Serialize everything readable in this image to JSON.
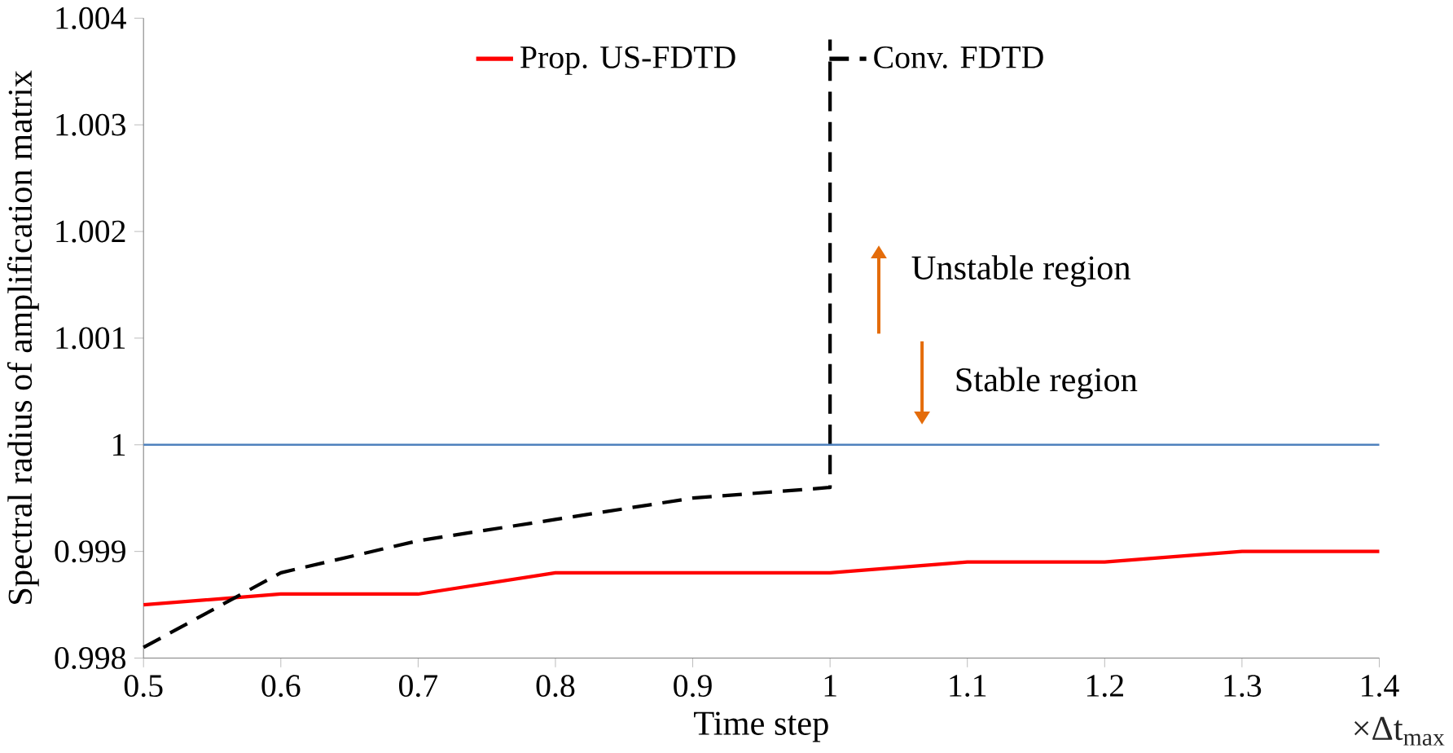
{
  "chart_data": {
    "type": "line",
    "xlabel": "Time step",
    "ylabel": "Spectral radius of amplification matrix",
    "xlim": [
      0.5,
      1.4
    ],
    "ylim": [
      0.998,
      1.004
    ],
    "xticks": [
      0.5,
      0.6,
      0.7,
      0.8,
      0.9,
      1,
      1.1,
      1.2,
      1.3,
      1.4
    ],
    "yticks": [
      0.998,
      0.999,
      1,
      1.001,
      1.002,
      1.003,
      1.004
    ],
    "legend": "top",
    "series": [
      {
        "name": "Prop. US-FDTD",
        "color": "#ff0000",
        "line_style": "solid",
        "x": [
          0.5,
          0.6,
          0.7,
          0.8,
          0.9,
          1.0,
          1.1,
          1.2,
          1.3,
          1.4
        ],
        "values": [
          0.9985,
          0.9986,
          0.9986,
          0.9988,
          0.9988,
          0.9988,
          0.9989,
          0.9989,
          0.999,
          0.999
        ]
      },
      {
        "name": "Conv. FDTD",
        "color": "#000000",
        "line_style": "dashed",
        "x": [
          0.5,
          0.6,
          0.7,
          0.8,
          0.9,
          1.0,
          1.0
        ],
        "values": [
          0.9981,
          0.9988,
          0.9991,
          0.9993,
          0.9995,
          0.9996,
          1.0038
        ]
      }
    ],
    "ref_lines": [
      {
        "axis": "y",
        "value": 1,
        "color": "#4f81bd"
      }
    ],
    "annotations": [
      "Unstable region",
      "Stable region",
      "×Δt$_{max}$"
    ]
  }
}
